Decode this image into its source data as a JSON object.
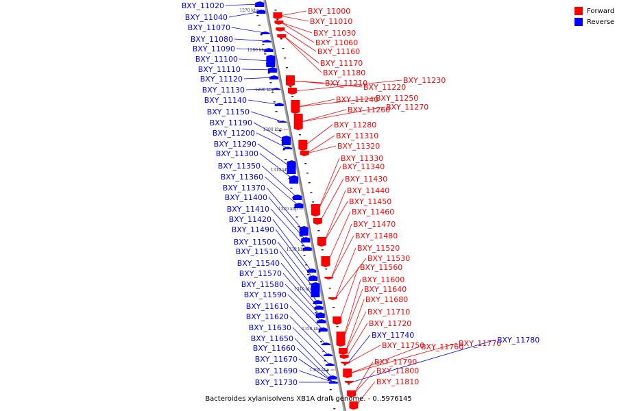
{
  "caption": "Bacteroides xylanisolvens XB1A draft genome. - 0..5976145",
  "legend": {
    "forward_label": "Forward",
    "forward_color": "#ff0000",
    "reverse_label": "Reverse",
    "reverse_color": "#0000ff"
  },
  "ticks": [
    "1270 kbp",
    "1280 kbp",
    "1290 kbp",
    "1300 kbp",
    "1310 kbp",
    "1320 kbp",
    "1330 kbp",
    "1340 kbp",
    "1350 kbp",
    "1360 kbp"
  ],
  "reverse_genes": [
    "BXY_11020",
    "BXY_11040",
    "BXY_11070",
    "BXY_11080",
    "BXY_11090",
    "BXY_11100",
    "BXY_11110",
    "BXY_11120",
    "BXY_11130",
    "BXY_11140",
    "BXY_11150",
    "BXY_11190",
    "BXY_11200",
    "BXY_11290",
    "BXY_11300",
    "BXY_11350",
    "BXY_11360",
    "BXY_11370",
    "BXY_11400",
    "BXY_11410",
    "BXY_11420",
    "BXY_11490",
    "BXY_11500",
    "BXY_11510",
    "BXY_11540",
    "BXY_11570",
    "BXY_11580",
    "BXY_11590",
    "BXY_11610",
    "BXY_11620",
    "BXY_11630",
    "BXY_11650",
    "BXY_11660",
    "BXY_11670",
    "BXY_11690",
    "BXY_11730"
  ],
  "forward_genes": [
    "BXY_11000",
    "BXY_11010",
    "BXY_11030",
    "BXY_11060",
    "BXY_11160",
    "BXY_11170",
    "BXY_11180",
    "BXY_11210",
    "BXY_11220",
    "BXY_11230",
    "BXY_11240",
    "BXY_11250",
    "BXY_11260",
    "BXY_11270",
    "BXY_11280",
    "BXY_11310",
    "BXY_11320",
    "BXY_11330",
    "BXY_11340",
    "BXY_11430",
    "BXY_11440",
    "BXY_11450",
    "BXY_11460",
    "BXY_11470",
    "BXY_11480",
    "BXY_11520",
    "BXY_11530",
    "BXY_11560",
    "BXY_11600",
    "BXY_11640",
    "BXY_11680",
    "BXY_11710",
    "BXY_11720",
    "BXY_11740",
    "BXY_11750",
    "BXY_11760",
    "BXY_11770",
    "BXY_11780",
    "BXY_11790",
    "BXY_11800",
    "BXY_11810"
  ]
}
